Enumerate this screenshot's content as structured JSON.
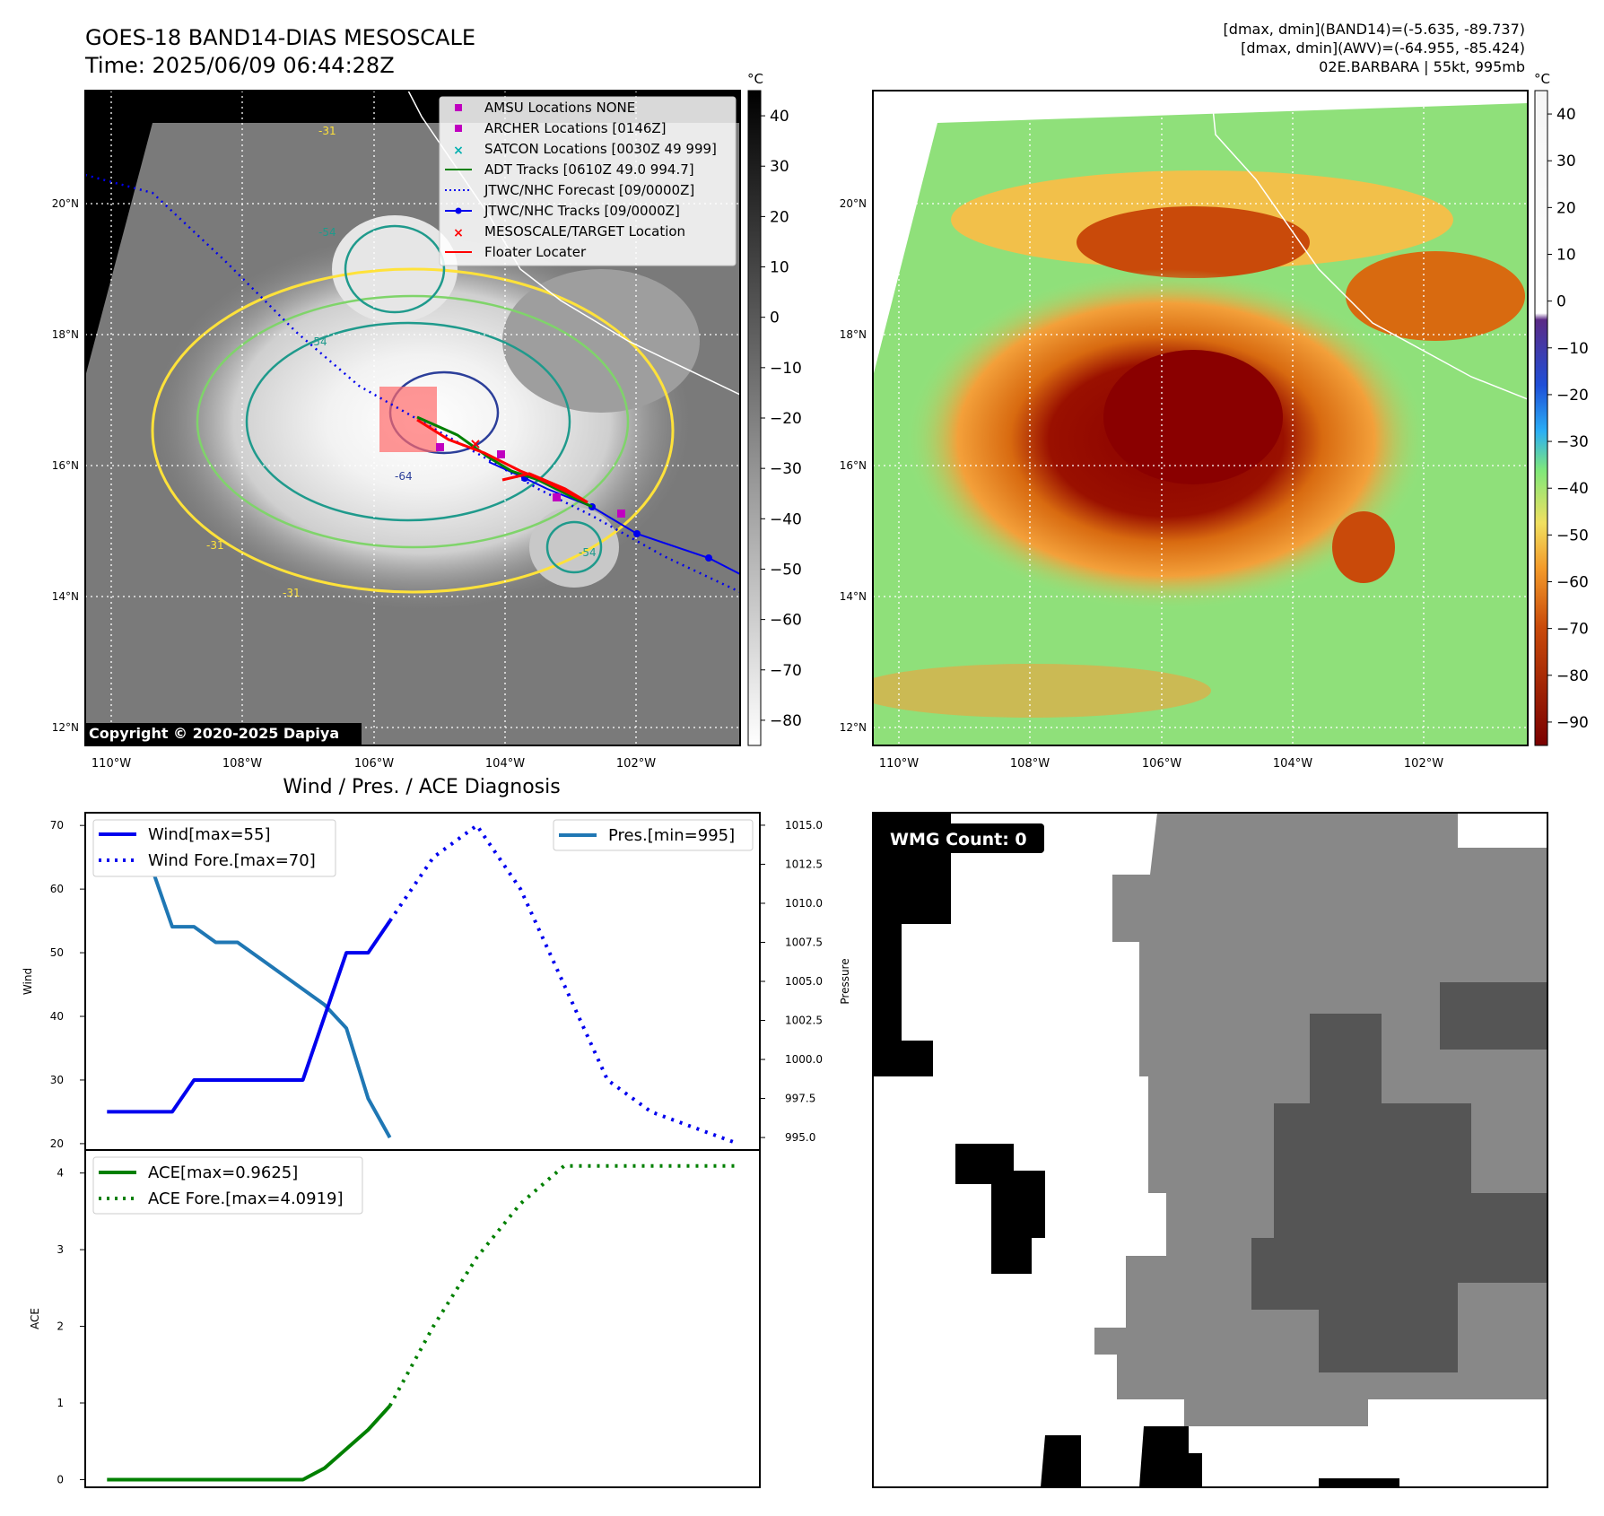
{
  "header": {
    "title": "GOES-18 BAND14-DIAS MESOSCALE",
    "time": "Time: 2025/06/09 06:44:28Z",
    "stats_band14": "[dmax, dmin](BAND14)=(-5.635, -89.737)",
    "stats_awv": "[dmax, dmin](AWV)=(-64.955, -85.424)",
    "storm": "02E.BARBARA | 55kt, 995mb"
  },
  "map": {
    "lon_labels": [
      "110°W",
      "108°W",
      "106°W",
      "104°W",
      "102°W"
    ],
    "lat_labels": [
      "20°N",
      "18°N",
      "16°N",
      "14°N",
      "12°N"
    ],
    "copyright": "Copyright © 2020-2025 Dapiya",
    "contour_labels": [
      "-31",
      "-54",
      "-54",
      "-64",
      "-31",
      "-31",
      "-54"
    ]
  },
  "colorbar_left": {
    "unit": "°C",
    "ticks": [
      "40",
      "30",
      "20",
      "10",
      "0",
      "−10",
      "−20",
      "−30",
      "−40",
      "−50",
      "−60",
      "−70",
      "−80"
    ]
  },
  "colorbar_right": {
    "unit": "°C",
    "ticks": [
      "40",
      "30",
      "20",
      "10",
      "0",
      "−10",
      "−20",
      "−30",
      "−40",
      "−50",
      "−60",
      "−70",
      "−80",
      "−90"
    ]
  },
  "legend": {
    "amsu": "AMSU Locations NONE",
    "archer": "ARCHER Locations [0146Z]",
    "satcon": "SATCON Locations [0030Z 49 999]",
    "adt": "ADT Tracks [0610Z 49.0 994.7]",
    "forecast": "JTWC/NHC Forecast [09/0000Z]",
    "tracks": "JTWC/NHC Tracks [09/0000Z]",
    "target": "MESOSCALE/TARGET Location",
    "floater": "Floater Locater"
  },
  "colors": {
    "wind": "#0000ee",
    "pressure": "#1f77b4",
    "ace": "#008000",
    "archer": "#c000c0",
    "satcon": "#00b0b0",
    "target": "#ff0000"
  },
  "wmg": {
    "label": "WMG Count: 0"
  },
  "chart_data": [
    {
      "type": "line",
      "title": "Wind / Pres. / ACE Diagnosis",
      "ylabel": "Wind",
      "y2label": "Pressure",
      "ylim": [
        19,
        72
      ],
      "y2lim": [
        994.2,
        1015.8
      ],
      "yticks": [
        "20",
        "30",
        "40",
        "50",
        "60",
        "70"
      ],
      "y2ticks": [
        "995.0",
        "997.5",
        "1000.0",
        "1002.5",
        "1005.0",
        "1007.5",
        "1010.0",
        "1012.5",
        "1015.0"
      ],
      "xlim": [
        -1,
        30
      ],
      "legend_left": [
        "Wind[max=55]",
        "Wind Fore.[max=70]"
      ],
      "legend_right": [
        "Pres.[min=995]"
      ],
      "series": [
        {
          "name": "Wind[max=55]",
          "x": [
            0,
            1,
            2,
            3,
            4,
            5,
            6,
            7,
            8,
            9,
            10,
            11,
            12,
            13
          ],
          "values": [
            25,
            25,
            25,
            25,
            30,
            30,
            30,
            30,
            30,
            30,
            40,
            50,
            50,
            55
          ]
        },
        {
          "name": "Wind Fore.[max=70]",
          "x": [
            13,
            15,
            17,
            19,
            21,
            23,
            25,
            27,
            29
          ],
          "values": [
            55,
            65,
            70,
            60,
            45,
            30,
            25,
            22.5,
            20
          ]
        },
        {
          "name": "Pres.[min=995]",
          "x": [
            0,
            1,
            2,
            3,
            4,
            5,
            6,
            7,
            8,
            9,
            10,
            11,
            12,
            13
          ],
          "values": [
            1015,
            1015,
            1012.5,
            1008.5,
            1008.5,
            1007.5,
            1007.5,
            1006.5,
            1005.5,
            1004.5,
            1003.5,
            1002,
            997.5,
            995
          ]
        }
      ]
    },
    {
      "type": "line",
      "ylabel": "ACE",
      "ylim": [
        -0.1,
        4.3
      ],
      "yticks": [
        "0",
        "1",
        "2",
        "3",
        "4"
      ],
      "xlim": [
        -1,
        30
      ],
      "legend": [
        "ACE[max=0.9625]",
        "ACE Fore.[max=4.0919]"
      ],
      "series": [
        {
          "name": "ACE[max=0.9625]",
          "x": [
            0,
            1,
            2,
            3,
            4,
            5,
            6,
            7,
            8,
            9,
            10,
            11,
            12,
            13
          ],
          "values": [
            0,
            0,
            0,
            0,
            0,
            0,
            0,
            0,
            0,
            0,
            0.15,
            0.4,
            0.65,
            0.9625
          ]
        },
        {
          "name": "ACE Fore.[max=4.0919]",
          "x": [
            13,
            15,
            17,
            19,
            21,
            23,
            25,
            27,
            29
          ],
          "values": [
            0.9625,
            2.0,
            2.9,
            3.6,
            4.0919,
            4.0919,
            4.0919,
            4.0919,
            4.0919
          ]
        }
      ]
    }
  ]
}
